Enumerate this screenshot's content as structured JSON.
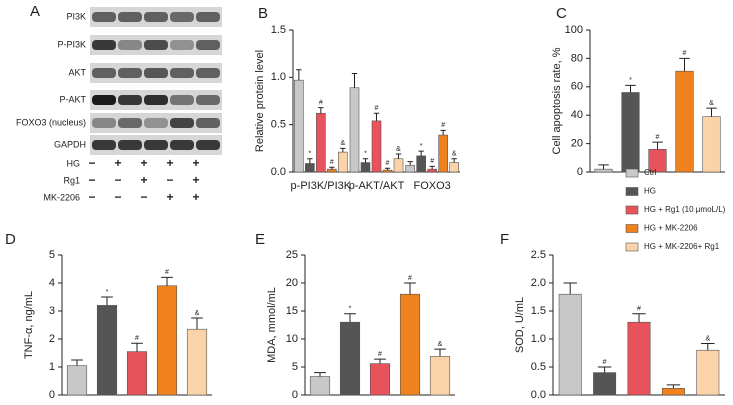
{
  "blot": {
    "panel": "A",
    "rows": [
      "PI3K",
      "P-PI3K",
      "AKT",
      "P-AKT",
      "FOXO3 (nucleus)",
      "GAPDH"
    ],
    "conditions": [
      {
        "name": "HG",
        "signs": [
          "−",
          "+",
          "+",
          "+",
          "+"
        ]
      },
      {
        "name": "Rg1",
        "signs": [
          "−",
          "−",
          "+",
          "−",
          "+"
        ]
      },
      {
        "name": "MK-2206",
        "signs": [
          "−",
          "−",
          "−",
          "+",
          "+"
        ]
      }
    ]
  },
  "chart_data": [
    {
      "type": "grouped-bar",
      "panel": "B",
      "ylabel": "Relative protein level",
      "categories": [
        "p-PI3K/PI3K",
        "p-AKT/AKT",
        "FOXO3"
      ],
      "ylim": [
        0,
        1.5
      ],
      "yticks": [
        {
          "value": 0,
          "label": "0.0"
        },
        {
          "value": 0.5,
          "label": "0.5"
        },
        {
          "value": 1,
          "label": "1.0"
        },
        {
          "value": 1.5,
          "label": "1.5"
        }
      ],
      "series": [
        {
          "name": "Ctrl",
          "color": "#c8c8c8",
          "values": [
            0.97,
            0.89,
            0.07
          ],
          "errors": [
            0.11,
            0.15,
            0.04
          ],
          "annotations": [
            null,
            null,
            null
          ]
        },
        {
          "name": "HG",
          "color": "#555555",
          "values": [
            0.09,
            0.1,
            0.17
          ],
          "errors": [
            0.05,
            0.04,
            0.05
          ],
          "annotations": [
            "*",
            "*",
            "*"
          ]
        },
        {
          "name": "HG + Rg1 (10 μmoL/L)",
          "color": "#e8525a",
          "values": [
            0.62,
            0.54,
            0.03
          ],
          "errors": [
            0.06,
            0.08,
            0.03
          ],
          "annotations": [
            "#",
            "#",
            "#"
          ]
        },
        {
          "name": "HG + MK-2206",
          "color": "#f0821e",
          "values": [
            0.03,
            0.02,
            0.39
          ],
          "errors": [
            0.02,
            0.02,
            0.05
          ],
          "annotations": [
            "#",
            "#",
            "#"
          ]
        },
        {
          "name": "HG + MK-2206+ Rg1",
          "color": "#fad4a8",
          "values": [
            0.21,
            0.14,
            0.1
          ],
          "errors": [
            0.04,
            0.05,
            0.04
          ],
          "annotations": [
            "&",
            "&",
            "&"
          ]
        }
      ]
    },
    {
      "type": "bar",
      "panel": "C",
      "ylabel": "Cell apoptosis rate, %",
      "ylim": [
        0,
        100
      ],
      "yticks": [
        0,
        20,
        40,
        60,
        80,
        100
      ],
      "values": [
        2,
        56,
        16,
        71,
        39
      ],
      "errors": [
        3,
        5,
        5,
        9,
        6
      ],
      "colors": [
        "#c8c8c8",
        "#555555",
        "#e8525a",
        "#f0821e",
        "#fad4a8"
      ],
      "annotations": [
        null,
        "*",
        "#",
        "#",
        "&"
      ]
    },
    {
      "type": "bar",
      "panel": "D",
      "ylabel": "TNF-α, ng/mL",
      "ylim": [
        0,
        5
      ],
      "yticks": [
        0,
        1,
        2,
        3,
        4,
        5
      ],
      "values": [
        1.05,
        3.2,
        1.55,
        3.9,
        2.35
      ],
      "errors": [
        0.2,
        0.3,
        0.3,
        0.3,
        0.4
      ],
      "colors": [
        "#c8c8c8",
        "#555555",
        "#e8525a",
        "#f0821e",
        "#fad4a8"
      ],
      "annotations": [
        null,
        "*",
        "#",
        "#",
        "&"
      ]
    },
    {
      "type": "bar",
      "panel": "E",
      "ylabel": "MDA, mmol/mL",
      "ylim": [
        0,
        25
      ],
      "yticks": [
        0,
        5,
        10,
        15,
        20,
        25
      ],
      "values": [
        3.3,
        13,
        5.6,
        18,
        6.9
      ],
      "errors": [
        0.7,
        1.5,
        0.8,
        2,
        1.3
      ],
      "colors": [
        "#c8c8c8",
        "#555555",
        "#e8525a",
        "#f0821e",
        "#fad4a8"
      ],
      "annotations": [
        null,
        "*",
        "#",
        "#",
        "&"
      ]
    },
    {
      "type": "bar",
      "panel": "F",
      "ylabel": "SOD, U/mL",
      "ylim": [
        0,
        2.5
      ],
      "yticks": [
        {
          "value": 0,
          "label": "0.0"
        },
        {
          "value": 0.5,
          "label": "0.5"
        },
        {
          "value": 1,
          "label": "1.0"
        },
        {
          "value": 1.5,
          "label": "1.5"
        },
        {
          "value": 2,
          "label": "2.0"
        },
        {
          "value": 2.5,
          "label": "2.5"
        }
      ],
      "values": [
        1.8,
        0.4,
        1.3,
        0.12,
        0.8
      ],
      "errors": [
        0.2,
        0.1,
        0.15,
        0.06,
        0.12
      ],
      "colors": [
        "#c8c8c8",
        "#555555",
        "#e8525a",
        "#f0821e",
        "#fad4a8"
      ],
      "annotations": [
        null,
        "#",
        "#",
        null,
        "&"
      ]
    }
  ]
}
